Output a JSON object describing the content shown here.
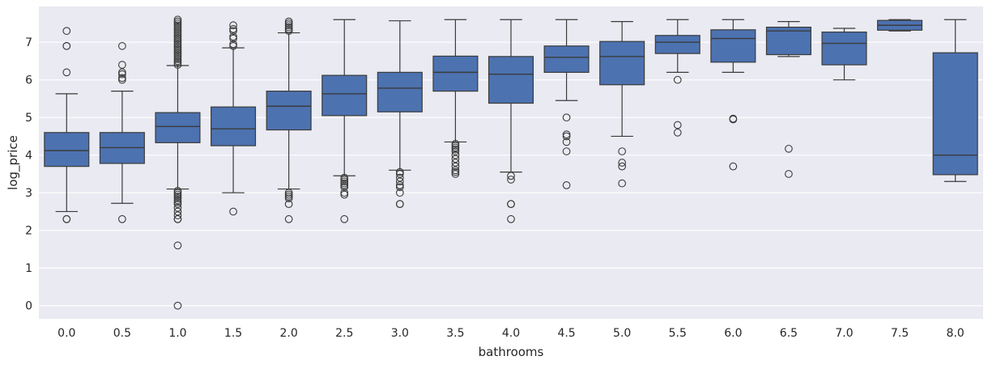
{
  "chart_data": {
    "type": "box",
    "xlabel": "bathrooms",
    "ylabel": "log_price",
    "ylim": [
      -0.35,
      7.95
    ],
    "y_ticks": [
      0,
      1,
      2,
      3,
      4,
      5,
      6,
      7
    ],
    "grid": true,
    "colors": {
      "background": "#eaeaf2",
      "grid": "#ffffff",
      "box_fill": "#4c72b0",
      "line": "#3b3b3b"
    },
    "categories": [
      "0.0",
      "0.5",
      "1.0",
      "1.5",
      "2.0",
      "2.5",
      "3.0",
      "3.5",
      "4.0",
      "4.5",
      "5.0",
      "5.5",
      "6.0",
      "6.5",
      "7.0",
      "7.5",
      "8.0"
    ],
    "boxes": [
      {
        "category": "0.0",
        "whisker_low": 2.5,
        "q1": 3.7,
        "median": 4.12,
        "q3": 4.6,
        "whisker_high": 5.63,
        "outliers": [
          2.3,
          2.3,
          6.2,
          6.9,
          6.9,
          7.3
        ]
      },
      {
        "category": "0.5",
        "whisker_low": 2.72,
        "q1": 3.78,
        "median": 4.2,
        "q3": 4.6,
        "whisker_high": 5.7,
        "outliers": [
          2.3,
          6.0,
          6.05,
          6.15,
          6.2,
          6.4,
          6.9
        ]
      },
      {
        "category": "1.0",
        "whisker_low": 3.1,
        "q1": 4.33,
        "median": 4.76,
        "q3": 5.13,
        "whisker_high": 6.38,
        "outliers": [
          0.0,
          1.6,
          2.3,
          2.3,
          2.4,
          2.5,
          2.6,
          2.7,
          2.75,
          2.8,
          2.85,
          2.9,
          2.95,
          3.0,
          3.05,
          6.4,
          6.45,
          6.5,
          6.55,
          6.6,
          6.65,
          6.7,
          6.75,
          6.8,
          6.85,
          6.9,
          6.95,
          7.0,
          7.05,
          7.1,
          7.15,
          7.2,
          7.25,
          7.3,
          7.35,
          7.4,
          7.45,
          7.5,
          7.55,
          7.6
        ]
      },
      {
        "category": "1.5",
        "whisker_low": 3.0,
        "q1": 4.25,
        "median": 4.7,
        "q3": 5.28,
        "whisker_high": 6.85,
        "outliers": [
          2.5,
          6.9,
          6.95,
          7.1,
          7.15,
          7.3,
          7.35,
          7.45
        ]
      },
      {
        "category": "2.0",
        "whisker_low": 3.1,
        "q1": 4.67,
        "median": 5.3,
        "q3": 5.7,
        "whisker_high": 7.25,
        "outliers": [
          2.3,
          2.7,
          2.85,
          2.9,
          2.95,
          3.0,
          7.3,
          7.35,
          7.4,
          7.45,
          7.5,
          7.55
        ]
      },
      {
        "category": "2.5",
        "whisker_low": 3.45,
        "q1": 5.05,
        "median": 5.63,
        "q3": 6.12,
        "whisker_high": 7.6,
        "outliers": [
          2.3,
          2.95,
          3.0,
          3.15,
          3.2,
          3.25,
          3.3,
          3.35,
          3.4
        ]
      },
      {
        "category": "3.0",
        "whisker_low": 3.6,
        "q1": 5.15,
        "median": 5.78,
        "q3": 6.2,
        "whisker_high": 7.57,
        "outliers": [
          2.7,
          2.7,
          3.0,
          3.15,
          3.2,
          3.3,
          3.4,
          3.5,
          3.55
        ]
      },
      {
        "category": "3.5",
        "whisker_low": 4.35,
        "q1": 5.7,
        "median": 6.2,
        "q3": 6.63,
        "whisker_high": 7.6,
        "outliers": [
          3.5,
          3.55,
          3.6,
          3.7,
          3.8,
          3.9,
          4.0,
          4.1,
          4.15,
          4.2,
          4.25,
          4.3
        ]
      },
      {
        "category": "4.0",
        "whisker_low": 3.55,
        "q1": 5.38,
        "median": 6.15,
        "q3": 6.62,
        "whisker_high": 7.6,
        "outliers": [
          2.3,
          2.7,
          2.7,
          3.35,
          3.45
        ]
      },
      {
        "category": "4.5",
        "whisker_low": 5.45,
        "q1": 6.2,
        "median": 6.6,
        "q3": 6.9,
        "whisker_high": 7.6,
        "outliers": [
          3.2,
          4.1,
          4.35,
          4.5,
          4.55,
          5.0
        ]
      },
      {
        "category": "5.0",
        "whisker_low": 4.5,
        "q1": 5.87,
        "median": 6.62,
        "q3": 7.02,
        "whisker_high": 7.55,
        "outliers": [
          3.25,
          3.7,
          3.8,
          4.1
        ]
      },
      {
        "category": "5.5",
        "whisker_low": 6.2,
        "q1": 6.7,
        "median": 7.0,
        "q3": 7.18,
        "whisker_high": 7.6,
        "outliers": [
          4.6,
          4.8,
          6.0
        ]
      },
      {
        "category": "6.0",
        "whisker_low": 6.2,
        "q1": 6.47,
        "median": 7.1,
        "q3": 7.33,
        "whisker_high": 7.6,
        "outliers": [
          3.7,
          4.95,
          4.97
        ]
      },
      {
        "category": "6.5",
        "whisker_low": 6.62,
        "q1": 6.67,
        "median": 7.3,
        "q3": 7.4,
        "whisker_high": 7.55,
        "outliers": [
          3.5,
          4.17
        ]
      },
      {
        "category": "7.0",
        "whisker_low": 6.0,
        "q1": 6.4,
        "median": 6.97,
        "q3": 7.27,
        "whisker_high": 7.37,
        "outliers": []
      },
      {
        "category": "7.5",
        "whisker_low": 7.3,
        "q1": 7.32,
        "median": 7.45,
        "q3": 7.58,
        "whisker_high": 7.6,
        "outliers": []
      },
      {
        "category": "8.0",
        "whisker_low": 3.3,
        "q1": 3.48,
        "median": 4.0,
        "q3": 6.72,
        "whisker_high": 7.6,
        "outliers": []
      }
    ]
  }
}
